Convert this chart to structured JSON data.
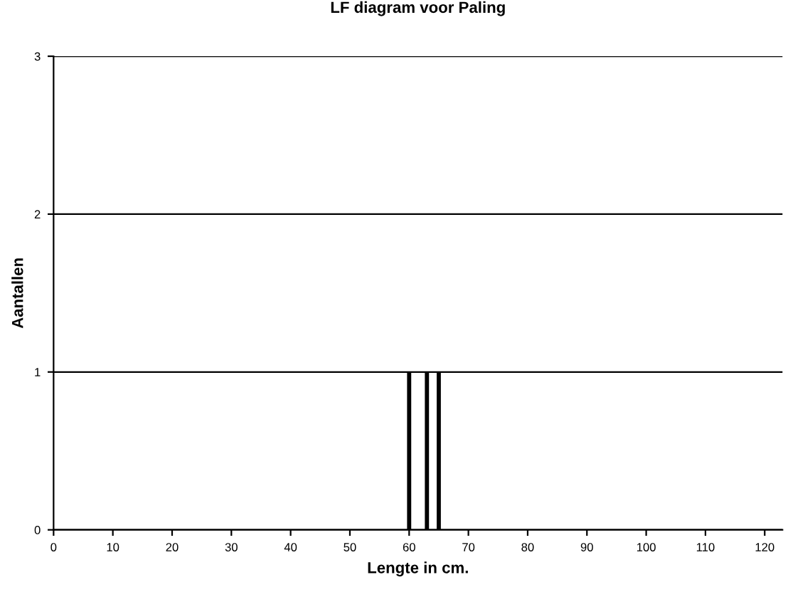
{
  "chart_data": {
    "type": "bar",
    "title": "LF diagram voor Paling",
    "xlabel": "Lengte in cm.",
    "ylabel": "Aantallen",
    "x": [
      60,
      63,
      65
    ],
    "values": [
      1,
      1,
      1
    ],
    "color": "#000000",
    "xlim": [
      0,
      123
    ],
    "xticks": [
      0,
      10,
      20,
      30,
      40,
      50,
      60,
      70,
      80,
      90,
      100,
      110,
      120
    ],
    "ylim": [
      0,
      3
    ],
    "yticks": [
      0,
      1,
      2,
      3
    ],
    "grid": "y",
    "legend": false
  }
}
